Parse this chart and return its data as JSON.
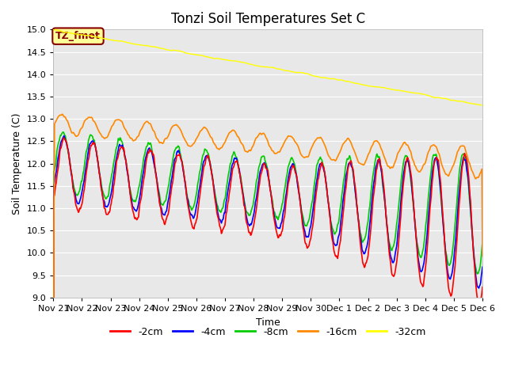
{
  "title": "Tonzi Soil Temperatures Set C",
  "ylabel": "Soil Temperature (C)",
  "xlabel": "Time",
  "ylim": [
    9.0,
    15.0
  ],
  "yticks": [
    9.0,
    9.5,
    10.0,
    10.5,
    11.0,
    11.5,
    12.0,
    12.5,
    13.0,
    13.5,
    14.0,
    14.5,
    15.0
  ],
  "xtick_labels": [
    "Nov 21",
    "Nov 22",
    "Nov 23",
    "Nov 24",
    "Nov 25",
    "Nov 26",
    "Nov 27",
    "Nov 28",
    "Nov 29",
    "Nov 30",
    "Dec 1",
    "Dec 2",
    "Dec 3",
    "Dec 4",
    "Dec 5",
    "Dec 6"
  ],
  "colors": {
    "-2cm": "#ff0000",
    "-4cm": "#0000ff",
    "-8cm": "#00cc00",
    "-16cm": "#ff8800",
    "-32cm": "#ffff00"
  },
  "legend_label": "TZ_fmet",
  "legend_bg": "#ffff99",
  "legend_border": "#880000",
  "bg_color": "#e8e8e8",
  "title_fontsize": 12
}
